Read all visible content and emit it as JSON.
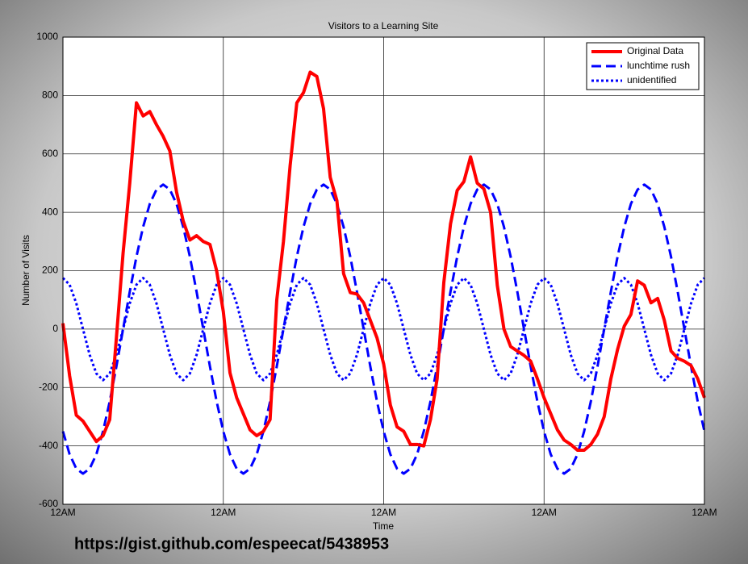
{
  "chart_data": {
    "type": "line",
    "title": "Visitors to a Learning Site",
    "xlabel": "Time",
    "ylabel": "Number of Visits",
    "x": [
      0,
      1,
      2,
      3,
      4,
      5,
      6,
      7,
      8,
      9,
      10,
      11,
      12,
      13,
      14,
      15,
      16,
      17,
      18,
      19,
      20,
      21,
      22,
      23,
      24,
      25,
      26,
      27,
      28,
      29,
      30,
      31,
      32,
      33,
      34,
      35,
      36,
      37,
      38,
      39,
      40,
      41,
      42,
      43,
      44,
      45,
      46,
      47,
      48,
      49,
      50,
      51,
      52,
      53,
      54,
      55,
      56,
      57,
      58,
      59,
      60,
      61,
      62,
      63,
      64,
      65,
      66,
      67,
      68,
      69,
      70,
      71,
      72,
      73,
      74,
      75,
      76,
      77,
      78,
      79,
      80,
      81,
      82,
      83,
      84,
      85,
      86,
      87,
      88,
      89,
      90,
      91,
      92,
      93,
      94,
      95,
      96
    ],
    "series": [
      {
        "name": "Original Data",
        "color": "#ff0000",
        "style": "solid",
        "values": [
          20,
          -160,
          -295,
          -315,
          -350,
          -385,
          -365,
          -310,
          -30,
          260,
          500,
          775,
          730,
          745,
          700,
          660,
          610,
          470,
          370,
          305,
          320,
          300,
          290,
          200,
          60,
          -150,
          -235,
          -290,
          -345,
          -365,
          -350,
          -310,
          100,
          300,
          560,
          775,
          810,
          880,
          865,
          755,
          520,
          440,
          190,
          125,
          120,
          90,
          30,
          -30,
          -120,
          -260,
          -335,
          -350,
          -395,
          -395,
          -400,
          -310,
          -170,
          160,
          360,
          475,
          505,
          590,
          500,
          480,
          400,
          150,
          0,
          -60,
          -75,
          -90,
          -110,
          -170,
          -235,
          -290,
          -345,
          -380,
          -395,
          -415,
          -415,
          -395,
          -360,
          -300,
          -170,
          -70,
          10,
          50,
          165,
          150,
          90,
          105,
          30,
          -75,
          -100,
          -110,
          -125,
          -170,
          -235
        ]
      },
      {
        "name": "lunchtime rush",
        "color": "#0000ff",
        "style": "dashed",
        "values": [
          -350,
          -429,
          -478,
          -495,
          -478,
          -429,
          -350,
          -248,
          -128,
          0,
          128,
          248,
          350,
          429,
          478,
          495,
          478,
          429,
          350,
          248,
          128,
          0,
          -128,
          -248,
          -350,
          -429,
          -478,
          -495,
          -478,
          -429,
          -350,
          -248,
          -128,
          0,
          128,
          248,
          350,
          429,
          478,
          495,
          478,
          429,
          350,
          248,
          128,
          0,
          -128,
          -248,
          -350,
          -429,
          -478,
          -495,
          -478,
          -429,
          -350,
          -248,
          -128,
          0,
          128,
          248,
          350,
          429,
          478,
          495,
          478,
          429,
          350,
          248,
          128,
          0,
          -128,
          -248,
          -350,
          -429,
          -478,
          -495,
          -478,
          -429,
          -350,
          -248,
          -128,
          0,
          128,
          248,
          350,
          429,
          478,
          495,
          478,
          429,
          350,
          248,
          128,
          0,
          -128,
          -248,
          -350
        ]
      },
      {
        "name": "unidentified",
        "color": "#0000ff",
        "style": "dotted",
        "values": [
          175,
          152,
          88,
          0,
          -88,
          -152,
          -175,
          -152,
          -88,
          0,
          88,
          152,
          175,
          152,
          88,
          0,
          -88,
          -152,
          -175,
          -152,
          -88,
          0,
          88,
          152,
          175,
          152,
          88,
          0,
          -88,
          -152,
          -175,
          -152,
          -88,
          0,
          88,
          152,
          175,
          152,
          88,
          0,
          -88,
          -152,
          -175,
          -152,
          -88,
          0,
          88,
          152,
          175,
          152,
          88,
          0,
          -88,
          -152,
          -175,
          -152,
          -88,
          0,
          88,
          152,
          175,
          152,
          88,
          0,
          -88,
          -152,
          -175,
          -152,
          -88,
          0,
          88,
          152,
          175,
          152,
          88,
          0,
          -88,
          -152,
          -175,
          -152,
          -88,
          0,
          88,
          152,
          175,
          152,
          88,
          0,
          -88,
          -152,
          -175,
          -152,
          -88,
          0,
          88,
          152,
          175
        ]
      }
    ],
    "xlim": [
      0,
      96
    ],
    "xticks": [
      {
        "value": 0,
        "label": "12AM"
      },
      {
        "value": 24,
        "label": "12AM"
      },
      {
        "value": 48,
        "label": "12AM"
      },
      {
        "value": 72,
        "label": "12AM"
      },
      {
        "value": 96,
        "label": "12AM"
      }
    ],
    "ylim": [
      -600,
      1000
    ],
    "yticks": [
      -600,
      -400,
      -200,
      0,
      200,
      400,
      600,
      800,
      1000
    ],
    "grid": true,
    "legend": "upper right",
    "annotation": "https://gist.github.com/espeecat/5438953"
  }
}
